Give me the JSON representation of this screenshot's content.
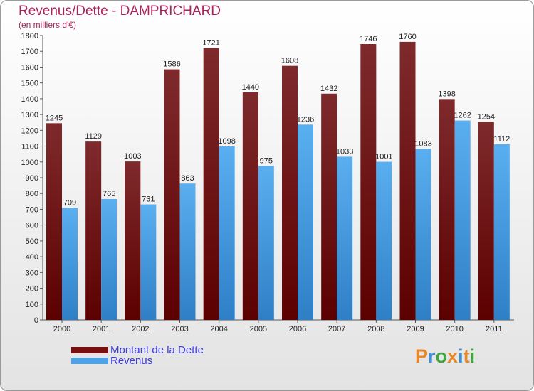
{
  "chart_data": {
    "type": "bar",
    "title": "Revenus/Dette - DAMPRICHARD",
    "subtitle": "(en milliers d'€)",
    "categories": [
      "2000",
      "2001",
      "2002",
      "2003",
      "2004",
      "2005",
      "2006",
      "2007",
      "2008",
      "2009",
      "2010",
      "2011"
    ],
    "series": [
      {
        "name": "Montant de la Dette",
        "values": [
          1245,
          1129,
          1003,
          1586,
          1721,
          1440,
          1608,
          1432,
          1746,
          1760,
          1398,
          1254
        ],
        "color": "#7a0f12"
      },
      {
        "name": "Revenus",
        "values": [
          709,
          765,
          731,
          863,
          1098,
          975,
          1236,
          1033,
          1001,
          1083,
          1262,
          1112
        ],
        "color": "#4da3e6"
      }
    ],
    "ylim": [
      0,
      1800
    ],
    "yticks": [
      0,
      100,
      200,
      300,
      400,
      500,
      600,
      700,
      800,
      900,
      1000,
      1100,
      1200,
      1300,
      1400,
      1500,
      1600,
      1700,
      1800
    ],
    "grid": false,
    "legend_position": "bottom-left",
    "data_labels": true
  },
  "logo": {
    "text": "Proxiti",
    "letter_colors": [
      "#e8862a",
      "#3b8fd9",
      "#3fa53f",
      "#e8862a",
      "#3b8fd9",
      "#e8862a",
      "#3fa53f"
    ]
  }
}
